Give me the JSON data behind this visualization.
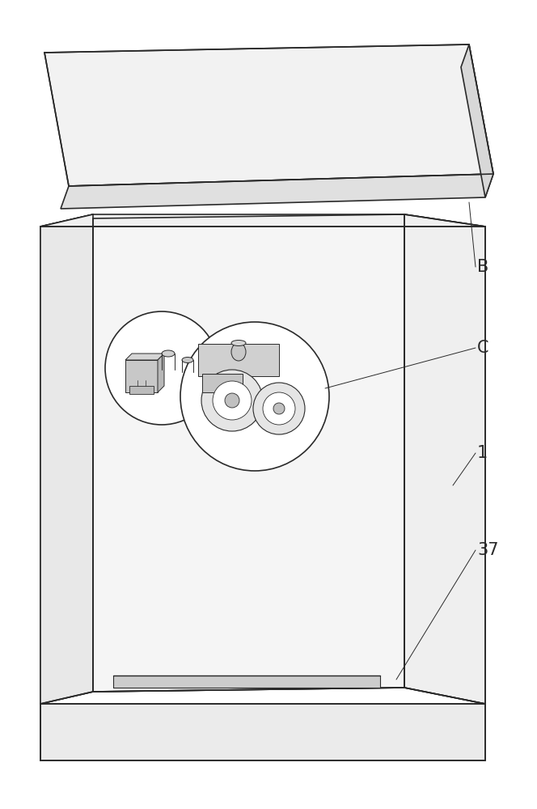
{
  "fig_width": 6.64,
  "fig_height": 10.0,
  "dpi": 100,
  "bg_color": "#ffffff",
  "line_color": "#2a2a2a",
  "line_width": 1.2,
  "thin_lw": 0.7,
  "label_fontsize": 15,
  "face_color_top": "#f0f0f0",
  "face_color_left": "#e8e8e8",
  "face_color_right": "#efefef",
  "face_color_back": "#f5f5f5",
  "face_color_floor": "#ebebeb",
  "face_color_lid_top": "#f2f2f2",
  "face_color_lid_front": "#e0e0e0",
  "face_color_lid_right": "#d8d8d8"
}
